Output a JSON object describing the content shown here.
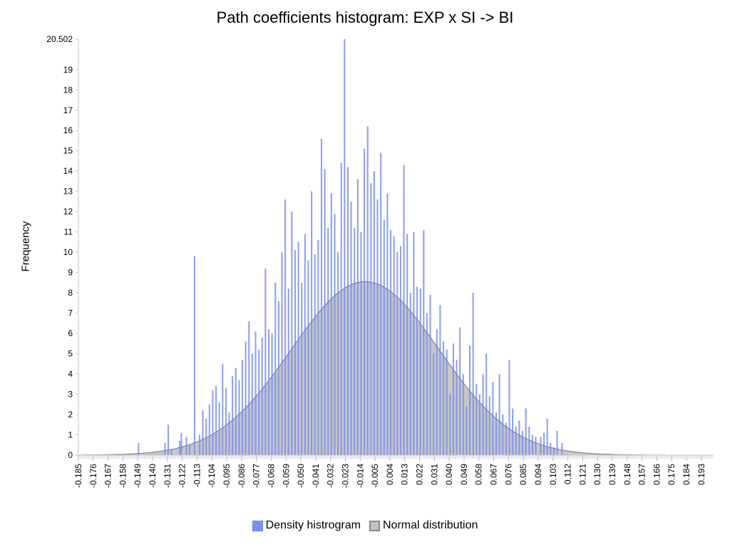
{
  "chart_data": {
    "type": "bar",
    "title": "Path coefficients histogram: EXP x SI -> BI",
    "ylabel": "Frequency",
    "xlabel": "",
    "ylim": [
      0,
      20.502
    ],
    "xlim": [
      -0.185,
      0.2
    ],
    "yticks": [
      "0",
      "1",
      "2",
      "3",
      "4",
      "5",
      "6",
      "7",
      "8",
      "9",
      "10",
      "11",
      "12",
      "13",
      "14",
      "15",
      "16",
      "17",
      "18",
      "19",
      "20.502"
    ],
    "xticks": [
      "-0.185",
      "-0.176",
      "-0.167",
      "-0.158",
      "-0.149",
      "-0.140",
      "-0.131",
      "-0.122",
      "-0.113",
      "-0.104",
      "-0.095",
      "-0.086",
      "-0.077",
      "-0.068",
      "-0.059",
      "-0.050",
      "-0.041",
      "-0.032",
      "-0.023",
      "-0.014",
      "-0.005",
      "0.004",
      "0.013",
      "0.022",
      "0.031",
      "0.040",
      "0.049",
      "0.058",
      "0.067",
      "0.076",
      "0.085",
      "0.094",
      "0.103",
      "0.112",
      "0.121",
      "0.130",
      "0.139",
      "0.148",
      "0.157",
      "0.166",
      "0.175",
      "0.184",
      "0.193"
    ],
    "histogram": {
      "name": "Density histrogram",
      "color": "#7b8ff0",
      "bin_width": 0.0009,
      "bins": [
        {
          "x": -0.1485,
          "y": 0.6
        },
        {
          "x": -0.1325,
          "y": 0.6
        },
        {
          "x": -0.1305,
          "y": 1.5
        },
        {
          "x": -0.1285,
          "y": 0.3
        },
        {
          "x": -0.1235,
          "y": 0.7
        },
        {
          "x": -0.1225,
          "y": 1.1
        },
        {
          "x": -0.1195,
          "y": 0.9
        },
        {
          "x": -0.1175,
          "y": 0.5
        },
        {
          "x": -0.1145,
          "y": 9.8
        },
        {
          "x": -0.1115,
          "y": 1.0
        },
        {
          "x": -0.1095,
          "y": 2.2
        },
        {
          "x": -0.1075,
          "y": 1.8
        },
        {
          "x": -0.1055,
          "y": 2.5
        },
        {
          "x": -0.1035,
          "y": 3.2
        },
        {
          "x": -0.1015,
          "y": 3.4
        },
        {
          "x": -0.0995,
          "y": 2.6
        },
        {
          "x": -0.0975,
          "y": 4.5
        },
        {
          "x": -0.0955,
          "y": 3.3
        },
        {
          "x": -0.0935,
          "y": 2.1
        },
        {
          "x": -0.0915,
          "y": 3.9
        },
        {
          "x": -0.0895,
          "y": 4.3
        },
        {
          "x": -0.0875,
          "y": 3.7
        },
        {
          "x": -0.0855,
          "y": 4.7
        },
        {
          "x": -0.0835,
          "y": 5.6
        },
        {
          "x": -0.0815,
          "y": 6.6
        },
        {
          "x": -0.0795,
          "y": 5.0
        },
        {
          "x": -0.0775,
          "y": 6.1
        },
        {
          "x": -0.0755,
          "y": 5.2
        },
        {
          "x": -0.0735,
          "y": 5.8
        },
        {
          "x": -0.0715,
          "y": 9.2
        },
        {
          "x": -0.0695,
          "y": 6.2
        },
        {
          "x": -0.0675,
          "y": 6.0
        },
        {
          "x": -0.0655,
          "y": 8.5
        },
        {
          "x": -0.0635,
          "y": 7.6
        },
        {
          "x": -0.0615,
          "y": 10.0
        },
        {
          "x": -0.0595,
          "y": 12.6
        },
        {
          "x": -0.0575,
          "y": 8.2
        },
        {
          "x": -0.0555,
          "y": 12.0
        },
        {
          "x": -0.0535,
          "y": 10.1
        },
        {
          "x": -0.0515,
          "y": 10.5
        },
        {
          "x": -0.0495,
          "y": 8.5
        },
        {
          "x": -0.0475,
          "y": 10.9
        },
        {
          "x": -0.0455,
          "y": 9.6
        },
        {
          "x": -0.0435,
          "y": 13.0
        },
        {
          "x": -0.0415,
          "y": 9.9
        },
        {
          "x": -0.0395,
          "y": 10.6
        },
        {
          "x": -0.0375,
          "y": 15.6
        },
        {
          "x": -0.0355,
          "y": 14.1
        },
        {
          "x": -0.0335,
          "y": 11.2
        },
        {
          "x": -0.0315,
          "y": 12.9
        },
        {
          "x": -0.0295,
          "y": 11.9
        },
        {
          "x": -0.0275,
          "y": 10.0
        },
        {
          "x": -0.0255,
          "y": 14.4
        },
        {
          "x": -0.0235,
          "y": 20.5
        },
        {
          "x": -0.0215,
          "y": 14.2
        },
        {
          "x": -0.0195,
          "y": 12.5
        },
        {
          "x": -0.0175,
          "y": 11.2
        },
        {
          "x": -0.0155,
          "y": 13.6
        },
        {
          "x": -0.0135,
          "y": 11.0
        },
        {
          "x": -0.0115,
          "y": 15.1
        },
        {
          "x": -0.0095,
          "y": 16.2
        },
        {
          "x": -0.0075,
          "y": 13.4
        },
        {
          "x": -0.0055,
          "y": 14.0
        },
        {
          "x": -0.0035,
          "y": 12.6
        },
        {
          "x": -0.0015,
          "y": 14.9
        },
        {
          "x": 0.0005,
          "y": 11.6
        },
        {
          "x": 0.0025,
          "y": 12.9
        },
        {
          "x": 0.0045,
          "y": 11.1
        },
        {
          "x": 0.0065,
          "y": 10.8
        },
        {
          "x": 0.0085,
          "y": 10.0
        },
        {
          "x": 0.0105,
          "y": 10.3
        },
        {
          "x": 0.0125,
          "y": 14.3
        },
        {
          "x": 0.0145,
          "y": 10.9
        },
        {
          "x": 0.0165,
          "y": 8.0
        },
        {
          "x": 0.0185,
          "y": 11.0
        },
        {
          "x": 0.0205,
          "y": 8.3
        },
        {
          "x": 0.0225,
          "y": 8.2
        },
        {
          "x": 0.0245,
          "y": 11.1
        },
        {
          "x": 0.0265,
          "y": 7.0
        },
        {
          "x": 0.0285,
          "y": 7.9
        },
        {
          "x": 0.0305,
          "y": 5.0
        },
        {
          "x": 0.0325,
          "y": 6.2
        },
        {
          "x": 0.0345,
          "y": 7.4
        },
        {
          "x": 0.0365,
          "y": 5.6
        },
        {
          "x": 0.0385,
          "y": 5.2
        },
        {
          "x": 0.0405,
          "y": 3.0
        },
        {
          "x": 0.0425,
          "y": 5.5
        },
        {
          "x": 0.0445,
          "y": 4.7
        },
        {
          "x": 0.0465,
          "y": 6.3
        },
        {
          "x": 0.0485,
          "y": 4.0
        },
        {
          "x": 0.0505,
          "y": 2.4
        },
        {
          "x": 0.0525,
          "y": 5.4
        },
        {
          "x": 0.0545,
          "y": 8.0
        },
        {
          "x": 0.0565,
          "y": 3.5
        },
        {
          "x": 0.0585,
          "y": 3.0
        },
        {
          "x": 0.0605,
          "y": 4.0
        },
        {
          "x": 0.0625,
          "y": 5.0
        },
        {
          "x": 0.0645,
          "y": 2.9
        },
        {
          "x": 0.0665,
          "y": 3.6
        },
        {
          "x": 0.0685,
          "y": 2.1
        },
        {
          "x": 0.0705,
          "y": 4.0
        },
        {
          "x": 0.0725,
          "y": 2.0
        },
        {
          "x": 0.0745,
          "y": 1.6
        },
        {
          "x": 0.0765,
          "y": 4.7
        },
        {
          "x": 0.0785,
          "y": 2.3
        },
        {
          "x": 0.0805,
          "y": 1.4
        },
        {
          "x": 0.0825,
          "y": 1.7
        },
        {
          "x": 0.0845,
          "y": 1.2
        },
        {
          "x": 0.0865,
          "y": 2.3
        },
        {
          "x": 0.0885,
          "y": 1.4
        },
        {
          "x": 0.0905,
          "y": 1.0
        },
        {
          "x": 0.0925,
          "y": 0.9
        },
        {
          "x": 0.0955,
          "y": 0.9
        },
        {
          "x": 0.0975,
          "y": 1.1
        },
        {
          "x": 0.0995,
          "y": 1.8
        },
        {
          "x": 0.1015,
          "y": 0.6
        },
        {
          "x": 0.1035,
          "y": 0.4
        },
        {
          "x": 0.1055,
          "y": 1.2
        },
        {
          "x": 0.1085,
          "y": 0.6
        }
      ]
    },
    "normal": {
      "name": "Normal distribution",
      "color": "#b4b4b4",
      "mean": -0.011,
      "sd": 0.045,
      "peak": 8.55
    },
    "legend": {
      "position": "bottom-center"
    },
    "grid": false
  }
}
